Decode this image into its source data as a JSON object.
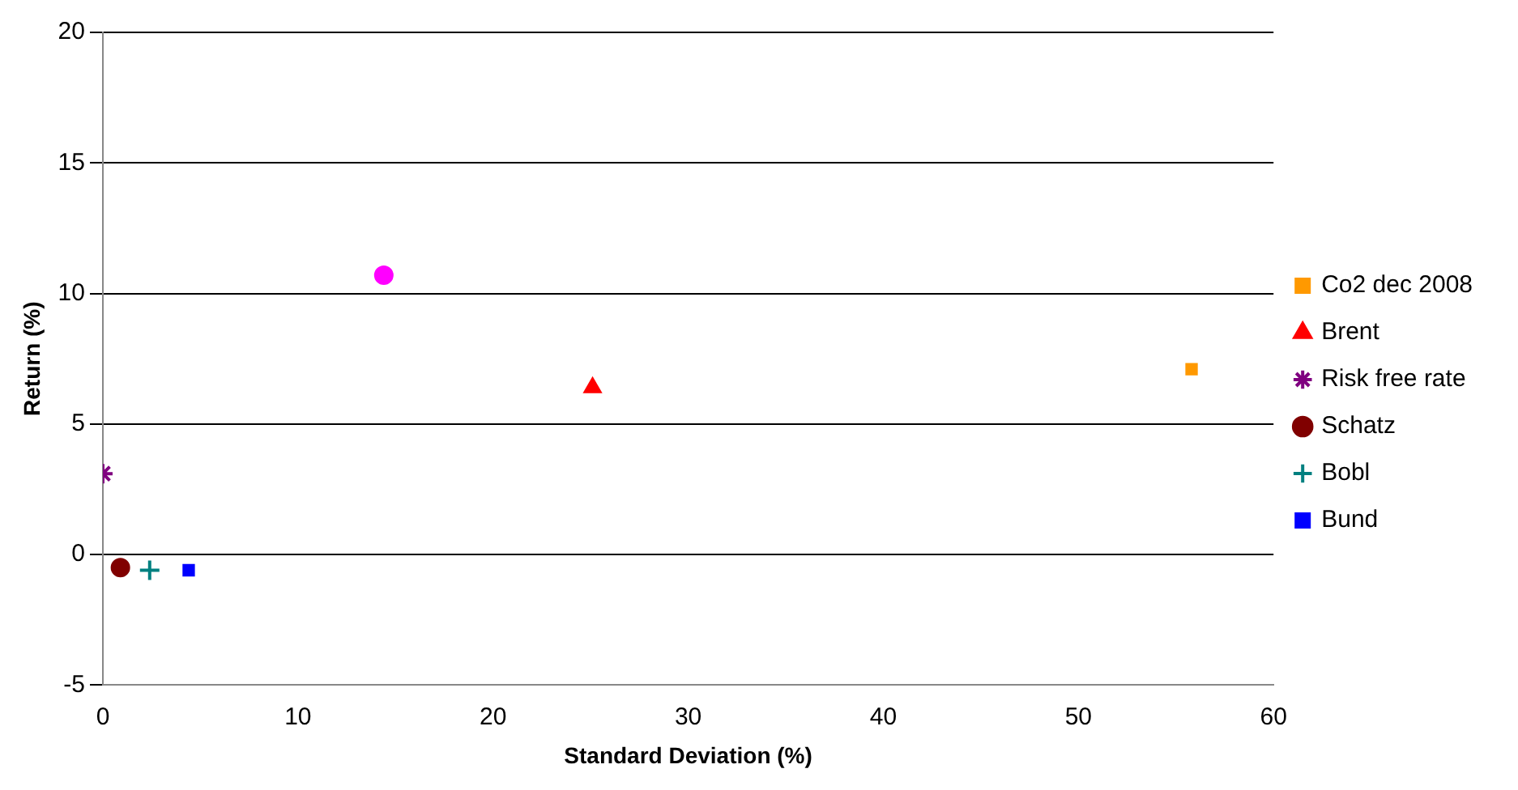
{
  "chart_data": {
    "type": "scatter",
    "xlabel": "Standard Deviation (%)",
    "ylabel": "Return (%)",
    "xlim": [
      0,
      60
    ],
    "xticks": [
      0,
      10,
      20,
      30,
      40,
      50,
      60
    ],
    "ylim": [
      -5,
      20
    ],
    "yticks": [
      -5,
      0,
      5,
      10,
      15,
      20
    ],
    "grid": "y",
    "legend": "right",
    "series": [
      {
        "name": "Co2 dec 2008",
        "color": "#ff9900",
        "marker": "square",
        "x": [
          55.8
        ],
        "values": [
          7.1
        ]
      },
      {
        "name": "Brent",
        "color": "#ff0000",
        "marker": "triangle",
        "x": [
          25.1
        ],
        "values": [
          6.4
        ]
      },
      {
        "name": "Risk free rate",
        "color": "#800080",
        "marker": "cross",
        "x": [
          0
        ],
        "values": [
          3.1
        ]
      },
      {
        "name": "Schatz",
        "color": "#800000",
        "marker": "circle",
        "x": [
          0.9
        ],
        "values": [
          -0.5
        ]
      },
      {
        "name": "Bobl",
        "color": "#008080",
        "marker": "cross",
        "x": [
          2.4
        ],
        "values": [
          -0.6
        ]
      },
      {
        "name": "Bund",
        "color": "#0000ff",
        "marker": "square",
        "x": [
          4.4
        ],
        "values": [
          -0.6
        ]
      },
      {
        "color": "#ff00ff",
        "marker": "circle",
        "x": [
          14.4
        ],
        "values": [
          10.7
        ]
      }
    ]
  }
}
